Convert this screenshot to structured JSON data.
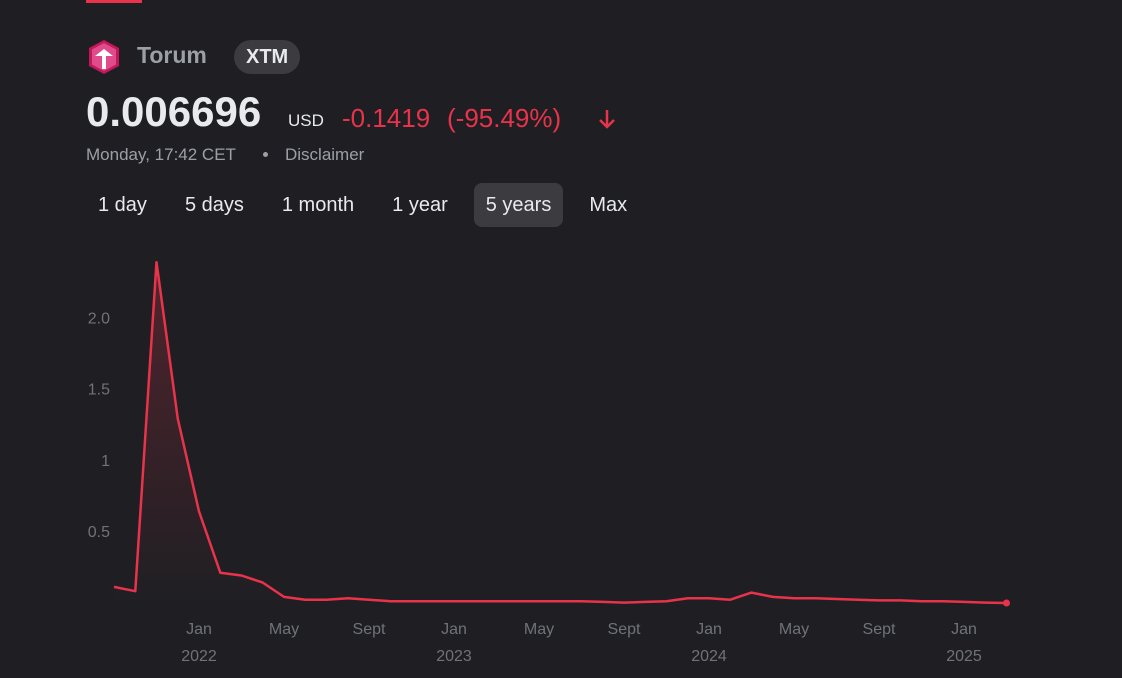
{
  "header": {
    "name": "Torum",
    "ticker": "XTM",
    "price": "0.006696",
    "currency": "USD",
    "change": "-0.1419",
    "change_percent": "(-95.49%)",
    "timestamp": "Monday, 17:42 CET",
    "disclaimer": "Disclaimer"
  },
  "ranges": [
    "1 day",
    "5 days",
    "1 month",
    "1 year",
    "5 years",
    "Max"
  ],
  "selected_range": 4,
  "chart_data": {
    "type": "line",
    "x": [
      "2021-09",
      "2021-10",
      "2021-11",
      "2021-12",
      "2022-01",
      "2022-02",
      "2022-03",
      "2022-04",
      "2022-05",
      "2022-06",
      "2022-07",
      "2022-08",
      "2022-09",
      "2022-10",
      "2022-11",
      "2022-12",
      "2023-01",
      "2023-02",
      "2023-03",
      "2023-04",
      "2023-05",
      "2023-06",
      "2023-07",
      "2023-08",
      "2023-09",
      "2023-10",
      "2023-11",
      "2023-12",
      "2024-01",
      "2024-02",
      "2024-03",
      "2024-04",
      "2024-05",
      "2024-06",
      "2024-07",
      "2024-08",
      "2024-09",
      "2024-10",
      "2024-11",
      "2024-12",
      "2025-01",
      "2025-02",
      "2025-03"
    ],
    "series": [
      {
        "name": "XTM",
        "color": "#e8334a",
        "values": [
          0.12,
          0.09,
          2.4,
          1.3,
          0.65,
          0.22,
          0.2,
          0.15,
          0.05,
          0.03,
          0.03,
          0.04,
          0.03,
          0.02,
          0.02,
          0.02,
          0.02,
          0.02,
          0.02,
          0.02,
          0.02,
          0.02,
          0.02,
          0.015,
          0.01,
          0.015,
          0.02,
          0.04,
          0.04,
          0.03,
          0.08,
          0.05,
          0.04,
          0.04,
          0.035,
          0.03,
          0.025,
          0.025,
          0.02,
          0.02,
          0.015,
          0.01,
          0.007
        ]
      }
    ],
    "ylim": [
      0,
      2.5
    ],
    "yticks": [
      0.5,
      1,
      1.5,
      {
        "value": 2,
        "label": "2.0"
      }
    ],
    "xticks": [
      {
        "value": "2022-01",
        "label": "Jan"
      },
      {
        "value": "2022-05",
        "label": "May"
      },
      {
        "value": "2022-09",
        "label": "Sept"
      },
      {
        "value": "2023-01",
        "label": "Jan"
      },
      {
        "value": "2023-05",
        "label": "May"
      },
      {
        "value": "2023-09",
        "label": "Sept"
      },
      {
        "value": "2024-01",
        "label": "Jan"
      },
      {
        "value": "2024-05",
        "label": "May"
      },
      {
        "value": "2024-09",
        "label": "Sept"
      },
      {
        "value": "2025-01",
        "label": "Jan"
      }
    ],
    "xtick_years": [
      {
        "value": "2022-01",
        "label": "2022"
      },
      {
        "value": "2023-01",
        "label": "2023"
      },
      {
        "value": "2024-01",
        "label": "2024"
      },
      {
        "value": "2025-01",
        "label": "2025"
      }
    ],
    "grid": false
  }
}
